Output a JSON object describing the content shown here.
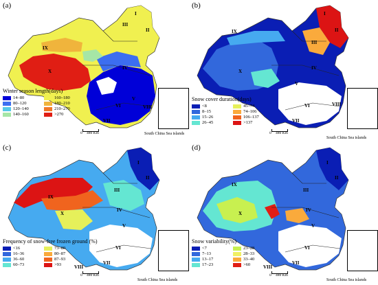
{
  "colors": {
    "a": [
      "#0000d8",
      "#3c6ef0",
      "#56c8e8",
      "#a6e6a6",
      "#f0f050",
      "#f0b43c",
      "#f07828",
      "#e01e14"
    ],
    "b": [
      "#0a1eb4",
      "#3268dc",
      "#46aaf0",
      "#64e6d2",
      "#e6f05a",
      "#faaa3c",
      "#f0641e",
      "#dc1414"
    ],
    "c": [
      "#0a1eb4",
      "#3268dc",
      "#46aaf0",
      "#64e6d2",
      "#e6f05a",
      "#faaa3c",
      "#f0641e",
      "#dc1414"
    ],
    "d": [
      "#0a1eb4",
      "#3268dc",
      "#46aaf0",
      "#64e6d2",
      "#c8f050",
      "#f0f064",
      "#faaa3c",
      "#e01e14"
    ]
  },
  "region_labels": [
    "I",
    "II",
    "III",
    "IV",
    "V",
    "VI",
    "VII",
    "VIII",
    "IX",
    "X"
  ],
  "inset_caption": "South China Sea islands",
  "scale": {
    "zero": "0",
    "distance": "480 Km"
  },
  "panels": [
    {
      "id": "a",
      "label": "(a)",
      "legend_title": "Winter season length(days)",
      "legend_items": [
        "14–80",
        "160–180",
        "80–120",
        "180–210",
        "120–140",
        "210–270",
        "140–160",
        ">270"
      ]
    },
    {
      "id": "b",
      "label": "(b)",
      "legend_title": "Snow cover duration(days)",
      "legend_items": [
        "<8",
        "45–74",
        "8–15",
        "74–106",
        "15–26",
        "106–137",
        "26–45",
        ">137"
      ]
    },
    {
      "id": "c",
      "label": "(c)",
      "legend_title": "Frequency of snow-free frozen ground (%)",
      "legend_items": [
        "<16",
        "73–80",
        "16–36",
        "80–87",
        "36–60",
        "87–93",
        "60–73",
        ">93"
      ]
    },
    {
      "id": "d",
      "label": "(d)",
      "legend_title": "Snow variability(%)",
      "legend_items": [
        "<7",
        "23–28",
        "7–13",
        "28–33",
        "13–17",
        "33–40",
        "17–23",
        ">60"
      ]
    }
  ]
}
